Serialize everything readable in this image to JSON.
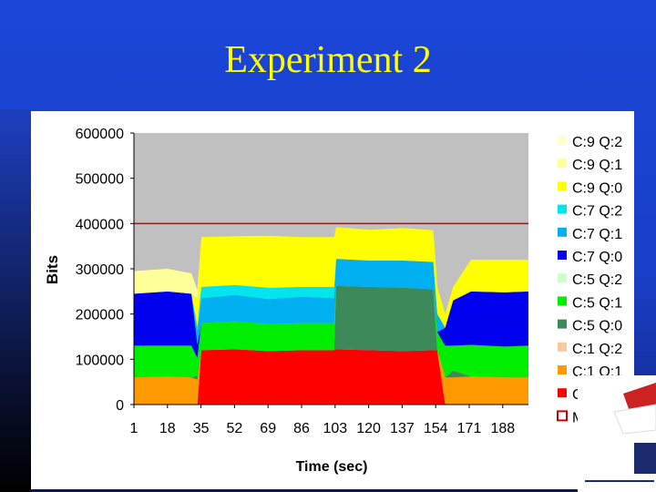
{
  "slide": {
    "title": "Experiment 2"
  },
  "chart_data": {
    "type": "area",
    "stacked": true,
    "xlabel": "Time (sec)",
    "ylabel": "Bits",
    "ylim": [
      0,
      600000
    ],
    "yticks": [
      0,
      100000,
      200000,
      300000,
      400000,
      500000,
      600000
    ],
    "ytick_labels": [
      "0",
      "100000",
      "200000",
      "300000",
      "400000",
      "500000",
      "600000"
    ],
    "xtick_labels": [
      "1",
      "18",
      "35",
      "52",
      "69",
      "86",
      "103",
      "120",
      "137",
      "154",
      "171",
      "188"
    ],
    "xlim": [
      1,
      200
    ],
    "x": [
      1,
      18,
      30,
      33,
      35,
      52,
      69,
      86,
      102,
      103,
      120,
      137,
      152,
      154,
      158,
      162,
      171,
      188,
      200
    ],
    "series": [
      {
        "name": "C:1 Q:0",
        "color": "#ff0000",
        "values": [
          0,
          0,
          0,
          0,
          120000,
          122000,
          118000,
          120000,
          120000,
          122000,
          120000,
          118000,
          120000,
          120000,
          0,
          0,
          0,
          0,
          0
        ]
      },
      {
        "name": "C:1 Q:1",
        "color": "#ff9900",
        "values": [
          60000,
          62000,
          60000,
          55000,
          0,
          0,
          0,
          0,
          0,
          0,
          0,
          0,
          0,
          0,
          60000,
          60000,
          62000,
          60000,
          60000
        ]
      },
      {
        "name": "C:1 Q:2",
        "color": "#f9cb9c",
        "values": [
          0,
          0,
          0,
          0,
          0,
          0,
          0,
          0,
          0,
          0,
          0,
          0,
          0,
          0,
          0,
          0,
          0,
          0,
          0
        ]
      },
      {
        "name": "C:5 Q:0",
        "color": "#3c8a5a",
        "values": [
          0,
          0,
          0,
          8000,
          0,
          0,
          0,
          0,
          0,
          140000,
          140000,
          140000,
          135000,
          0,
          0,
          15000,
          0,
          0,
          0
        ]
      },
      {
        "name": "C:5 Q:1",
        "color": "#00ee00",
        "values": [
          70000,
          68000,
          70000,
          40000,
          60000,
          62000,
          60000,
          60000,
          60000,
          0,
          0,
          0,
          0,
          40000,
          70000,
          55000,
          70000,
          68000,
          70000
        ]
      },
      {
        "name": "C:5 Q:2",
        "color": "#ccffcc",
        "values": [
          0,
          0,
          0,
          0,
          0,
          0,
          0,
          0,
          0,
          0,
          0,
          0,
          0,
          0,
          0,
          0,
          0,
          0,
          0
        ]
      },
      {
        "name": "C:7 Q:0",
        "color": "#0000ee",
        "values": [
          115000,
          120000,
          115000,
          30000,
          0,
          0,
          0,
          0,
          0,
          0,
          0,
          0,
          0,
          0,
          40000,
          100000,
          118000,
          120000,
          120000
        ]
      },
      {
        "name": "C:7 Q:1",
        "color": "#00b0f0",
        "values": [
          0,
          0,
          0,
          30000,
          55000,
          58000,
          55000,
          58000,
          55000,
          60000,
          58000,
          60000,
          60000,
          40000,
          0,
          0,
          0,
          0,
          0
        ]
      },
      {
        "name": "C:7 Q:2",
        "color": "#00e5ee",
        "values": [
          0,
          0,
          0,
          10000,
          25000,
          22000,
          25000,
          22000,
          25000,
          0,
          0,
          0,
          0,
          0,
          0,
          0,
          0,
          0,
          0
        ]
      },
      {
        "name": "C:9 Q:0",
        "color": "#ffff00",
        "values": [
          0,
          0,
          0,
          60000,
          110000,
          108000,
          115000,
          110000,
          110000,
          70000,
          68000,
          72000,
          70000,
          60000,
          30000,
          30000,
          70000,
          72000,
          70000
        ]
      },
      {
        "name": "C:9 Q:1",
        "color": "#ffff99",
        "values": [
          50000,
          50000,
          45000,
          20000,
          0,
          0,
          0,
          0,
          0,
          0,
          0,
          0,
          0,
          0,
          0,
          0,
          0,
          0,
          0
        ]
      },
      {
        "name": "C:9 Q:2",
        "color": "#ffffcc",
        "values": [
          0,
          0,
          0,
          0,
          0,
          0,
          0,
          0,
          0,
          0,
          0,
          0,
          0,
          0,
          0,
          0,
          0,
          0,
          0
        ]
      }
    ],
    "max": {
      "name": "Max",
      "value": 400000,
      "color": "#cc0000"
    },
    "capacity_color": "#c0c0c0",
    "legend": {
      "placement": "right",
      "items": [
        {
          "label": "C:9 Q:2",
          "color": "#ffffcc",
          "shape": "filled"
        },
        {
          "label": "C:9 Q:1",
          "color": "#ffff99",
          "shape": "filled"
        },
        {
          "label": "C:9 Q:0",
          "color": "#ffff00",
          "shape": "filled"
        },
        {
          "label": "C:7 Q:2",
          "color": "#00e5ee",
          "shape": "filled"
        },
        {
          "label": "C:7 Q:1",
          "color": "#00b0f0",
          "shape": "filled"
        },
        {
          "label": "C:7 Q:0",
          "color": "#0000ee",
          "shape": "filled"
        },
        {
          "label": "C:5 Q:2",
          "color": "#ccffcc",
          "shape": "filled"
        },
        {
          "label": "C:5 Q:1",
          "color": "#00ee00",
          "shape": "filled"
        },
        {
          "label": "C:5 Q:0",
          "color": "#3c8a5a",
          "shape": "filled"
        },
        {
          "label": "C:1 Q:2",
          "color": "#f9cb9c",
          "shape": "filled"
        },
        {
          "label": "C:1 Q:1",
          "color": "#ff9900",
          "shape": "filled"
        },
        {
          "label": "C:1 Q:0",
          "color": "#ff0000",
          "shape": "filled"
        },
        {
          "label": "Max",
          "color": "#cc0000",
          "shape": "outline"
        }
      ]
    },
    "grid": false
  }
}
